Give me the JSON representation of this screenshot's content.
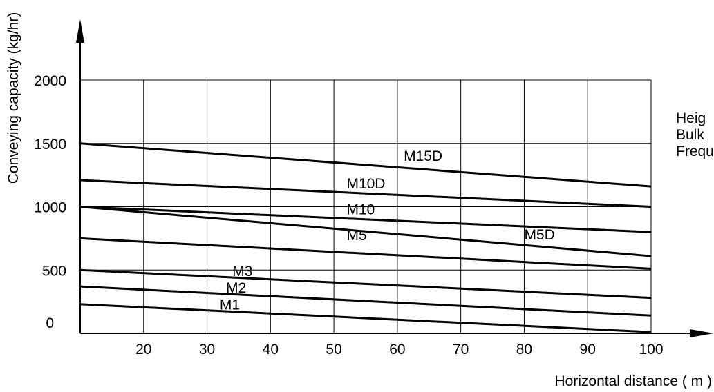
{
  "chart_data": {
    "type": "line",
    "xlabel": "Horizontal distance ( m )",
    "ylabel": "Conveying capacity (kg/hr)",
    "xlim": [
      10,
      100
    ],
    "ylim": [
      0,
      2000
    ],
    "x_ticks": [
      "20",
      "30",
      "40",
      "50",
      "60",
      "70",
      "80",
      "90",
      "100"
    ],
    "y_ticks": [
      "0",
      "500",
      "1000",
      "1500",
      "2000"
    ],
    "grid": true,
    "side_notes": [
      "Heig",
      "Bulk",
      "Frequ"
    ],
    "series": [
      {
        "name": "M15D",
        "x": [
          10,
          100
        ],
        "values": [
          1500,
          1160
        ]
      },
      {
        "name": "M10D",
        "x": [
          10,
          100
        ],
        "values": [
          1210,
          1000
        ]
      },
      {
        "name": "M10",
        "x": [
          10,
          100
        ],
        "values": [
          1000,
          800
        ]
      },
      {
        "name": "M5D",
        "x": [
          10,
          100
        ],
        "values": [
          1000,
          610
        ]
      },
      {
        "name": "M5",
        "x": [
          10,
          100
        ],
        "values": [
          750,
          510
        ]
      },
      {
        "name": "M3",
        "x": [
          10,
          100
        ],
        "values": [
          500,
          280
        ]
      },
      {
        "name": "M2",
        "x": [
          10,
          100
        ],
        "values": [
          370,
          140
        ]
      },
      {
        "name": "M1",
        "x": [
          10,
          100
        ],
        "values": [
          230,
          10
        ]
      }
    ]
  }
}
